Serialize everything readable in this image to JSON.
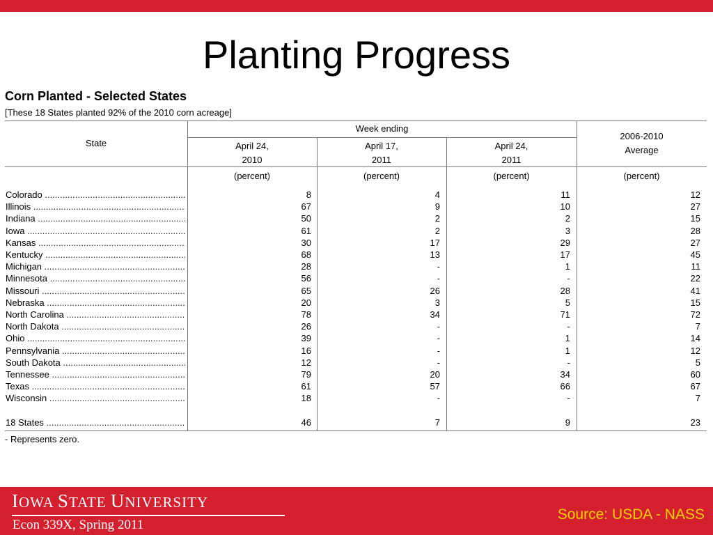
{
  "slide": {
    "title": "Planting Progress"
  },
  "table": {
    "title": "Corn Planted - Selected States",
    "subtitle": "[These 18 States planted 92% of the 2010 corn acreage]",
    "header": {
      "state": "State",
      "week_ending": "Week ending",
      "col1": [
        "April 24,",
        "2010"
      ],
      "col2": [
        "April 17,",
        "2011"
      ],
      "col3": [
        "April 24,",
        "2011"
      ],
      "col4": [
        "2006-2010",
        "Average"
      ],
      "unit": "(percent)"
    },
    "rows": [
      {
        "state": "Colorado",
        "v": [
          "8",
          "4",
          "11",
          "12"
        ]
      },
      {
        "state": "Illinois",
        "v": [
          "67",
          "9",
          "10",
          "27"
        ]
      },
      {
        "state": "Indiana",
        "v": [
          "50",
          "2",
          "2",
          "15"
        ]
      },
      {
        "state": "Iowa",
        "v": [
          "61",
          "2",
          "3",
          "28"
        ]
      },
      {
        "state": "Kansas",
        "v": [
          "30",
          "17",
          "29",
          "27"
        ]
      },
      {
        "state": "Kentucky",
        "v": [
          "68",
          "13",
          "17",
          "45"
        ]
      },
      {
        "state": "Michigan",
        "v": [
          "28",
          "-",
          "1",
          "11"
        ]
      },
      {
        "state": "Minnesota",
        "v": [
          "56",
          "-",
          "-",
          "22"
        ]
      },
      {
        "state": "Missouri",
        "v": [
          "65",
          "26",
          "28",
          "41"
        ]
      },
      {
        "state": "Nebraska",
        "v": [
          "20",
          "3",
          "5",
          "15"
        ]
      },
      {
        "state": "North Carolina",
        "v": [
          "78",
          "34",
          "71",
          "72"
        ]
      },
      {
        "state": "North Dakota",
        "v": [
          "26",
          "-",
          "-",
          "7"
        ]
      },
      {
        "state": "Ohio",
        "v": [
          "39",
          "-",
          "1",
          "14"
        ]
      },
      {
        "state": "Pennsylvania",
        "v": [
          "16",
          "-",
          "1",
          "12"
        ]
      },
      {
        "state": "South Dakota",
        "v": [
          "12",
          "-",
          "-",
          "5"
        ]
      },
      {
        "state": "Tennessee",
        "v": [
          "79",
          "20",
          "34",
          "60"
        ]
      },
      {
        "state": "Texas",
        "v": [
          "61",
          "57",
          "66",
          "67"
        ]
      },
      {
        "state": "Wisconsin",
        "v": [
          "18",
          "-",
          "-",
          "7"
        ]
      }
    ],
    "total": {
      "state": "18 States",
      "v": [
        "46",
        "7",
        "9",
        "23"
      ]
    },
    "footnote": "- Represents zero."
  },
  "footer": {
    "logo_parts": [
      "I",
      "OWA ",
      "S",
      "TATE ",
      "U",
      "NIVERSITY"
    ],
    "course": "Econ 339X, Spring 2011",
    "source": "Source: USDA - NASS"
  },
  "colors": {
    "brand_red": "#d31f2e",
    "source_gold": "#ffd200"
  }
}
